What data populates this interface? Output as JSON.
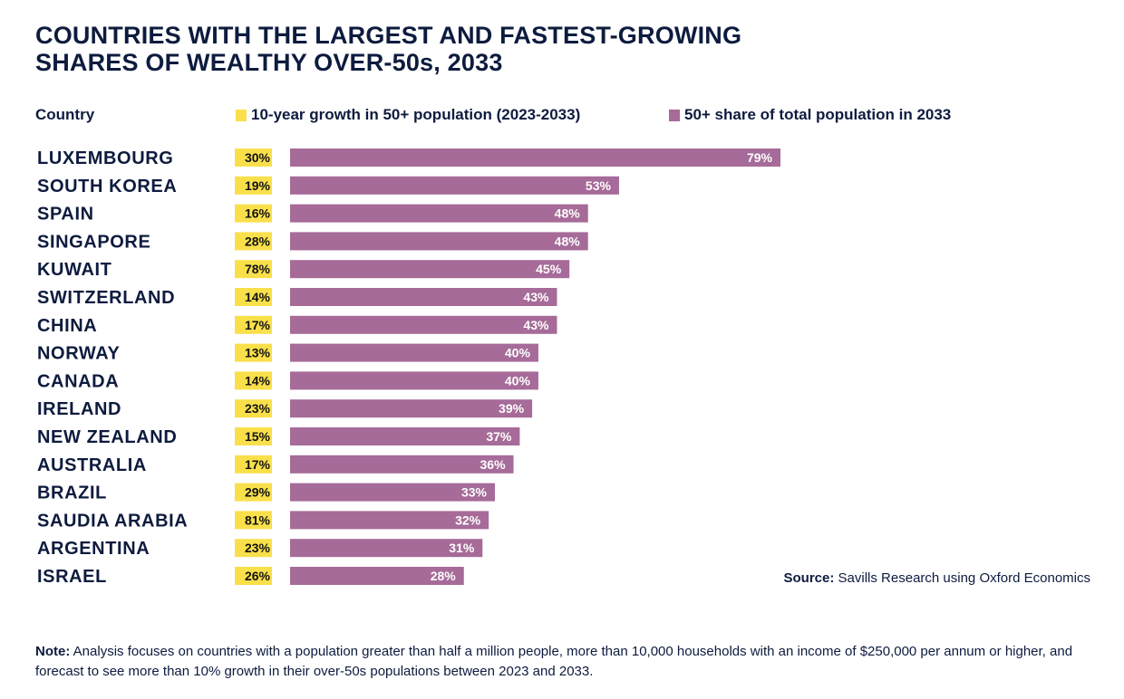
{
  "title": {
    "line1": "COUNTRIES WITH THE LARGEST AND FASTEST-GROWING",
    "line2": "SHARES OF WEALTHY OVER-50s, 2033"
  },
  "legend": {
    "country_header": "Country",
    "growth_label": "10-year growth in 50+ population (2023-2033)",
    "share_label": "50+ share of total population in 2033"
  },
  "colors": {
    "growth": "#f9e04b",
    "share": "#a66b99",
    "text": "#0d1b3e"
  },
  "source": {
    "label": "Source:",
    "text": " Savills Research using Oxford Economics"
  },
  "note": {
    "label": "Note:",
    "text": " Analysis focuses on countries with a population greater than half a million people, more than 10,000 households with an income of $250,000 per annum or higher, and forecast to see more than 10% growth in their over-50s populations between 2023 and 2033."
  },
  "chart_data": {
    "type": "bar",
    "orientation": "horizontal",
    "title": "COUNTRIES WITH THE LARGEST AND FASTEST-GROWING SHARES OF WEALTHY OVER-50s, 2033",
    "xlabel": "",
    "ylabel": "Country",
    "xlim": [
      0,
      100
    ],
    "grid": false,
    "legend_position": "top",
    "categories": [
      "LUXEMBOURG",
      "SOUTH KOREA",
      "SPAIN",
      "SINGAPORE",
      "KUWAIT",
      "SWITZERLAND",
      "CHINA",
      "NORWAY",
      "CANADA",
      "IRELAND",
      "NEW ZEALAND",
      "AUSTRALIA",
      "BRAZIL",
      "SAUDIA ARABIA",
      "ARGENTINA",
      "ISRAEL"
    ],
    "series": [
      {
        "name": "10-year growth in 50+ population (2023-2033)",
        "display": "label-only",
        "values": [
          30,
          19,
          16,
          28,
          78,
          14,
          17,
          13,
          14,
          23,
          15,
          17,
          29,
          81,
          23,
          26
        ],
        "labels": [
          "30%",
          "19%",
          "16%",
          "28%",
          "78%",
          "14%",
          "17%",
          "13%",
          "14%",
          "23%",
          "15%",
          "17%",
          "29%",
          "81%",
          "23%",
          "26%"
        ]
      },
      {
        "name": "50+ share of total population in 2033",
        "display": "bar",
        "values": [
          79,
          53,
          48,
          48,
          45,
          43,
          43,
          40,
          40,
          39,
          37,
          36,
          33,
          32,
          31,
          28
        ],
        "labels": [
          "79%",
          "53%",
          "48%",
          "48%",
          "45%",
          "43%",
          "43%",
          "40%",
          "40%",
          "39%",
          "37%",
          "36%",
          "33%",
          "32%",
          "31%",
          "28%"
        ]
      }
    ]
  }
}
